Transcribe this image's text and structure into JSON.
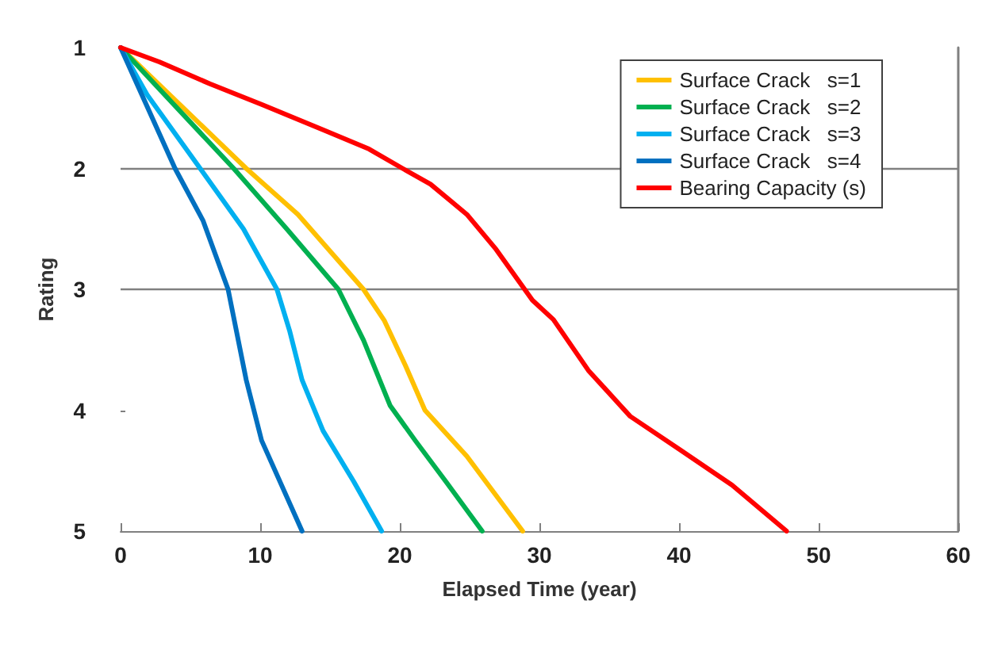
{
  "chart_data": {
    "type": "line",
    "xlabel": "Elapsed Time (year)",
    "ylabel": "Rating",
    "xlim": [
      0,
      60
    ],
    "xticks": [
      0,
      10,
      20,
      30,
      40,
      50,
      60
    ],
    "ylim": [
      5,
      1
    ],
    "yticks": [
      1,
      2,
      3,
      4,
      5
    ],
    "grid": false,
    "legend": "top right",
    "marker": "none",
    "line_style": "solid",
    "ref_lines": [
      {
        "axis": "y",
        "value": 2,
        "color": "#808080"
      },
      {
        "axis": "y",
        "value": 3,
        "color": "#808080"
      }
    ],
    "series": [
      {
        "name": "Surface Crack   s=1",
        "color": "#ffc000",
        "x": [
          0,
          9.0,
          12.7,
          14.9,
          17.4,
          18.9,
          20.4,
          21.8,
          24.8,
          28.8
        ],
        "values": [
          1,
          2,
          2.38,
          2.67,
          3.0,
          3.26,
          3.63,
          4.0,
          4.38,
          5
        ]
      },
      {
        "name": "Surface Crack   s=2",
        "color": "#00b050",
        "x": [
          0,
          8.1,
          11.9,
          15.6,
          17.4,
          19.3,
          21.1,
          23.3,
          25.9
        ],
        "values": [
          1,
          2,
          2.5,
          3.0,
          3.42,
          3.96,
          4.25,
          4.59,
          5
        ]
      },
      {
        "name": "Surface Crack   s=3",
        "color": "#00b0f0",
        "x": [
          0,
          1.9,
          5.7,
          8.8,
          11.2,
          12.1,
          13.0,
          14.5,
          16.7,
          18.7
        ],
        "values": [
          1,
          1.39,
          2,
          2.5,
          3.0,
          3.34,
          3.75,
          4.17,
          4.59,
          5
        ]
      },
      {
        "name": "Surface Crack   s=4",
        "color": "#0070c0",
        "x": [
          0,
          3.9,
          5.9,
          7.7,
          9.0,
          10.1,
          13.0
        ],
        "values": [
          1,
          2,
          2.43,
          3.0,
          3.75,
          4.25,
          5
        ]
      },
      {
        "name": "Bearing Capacity (s)",
        "color": "#ff0000",
        "x": [
          0,
          2.8,
          6.4,
          10.1,
          14.5,
          17.8,
          20.2,
          22.2,
          24.8,
          26.9,
          29.5,
          31.0,
          33.5,
          36.5,
          40.1,
          43.8,
          47.7
        ],
        "values": [
          1,
          1.12,
          1.3,
          1.47,
          1.68,
          1.84,
          2,
          2.13,
          2.38,
          2.67,
          3.09,
          3.25,
          3.67,
          4.05,
          4.33,
          4.62,
          5
        ]
      }
    ]
  }
}
